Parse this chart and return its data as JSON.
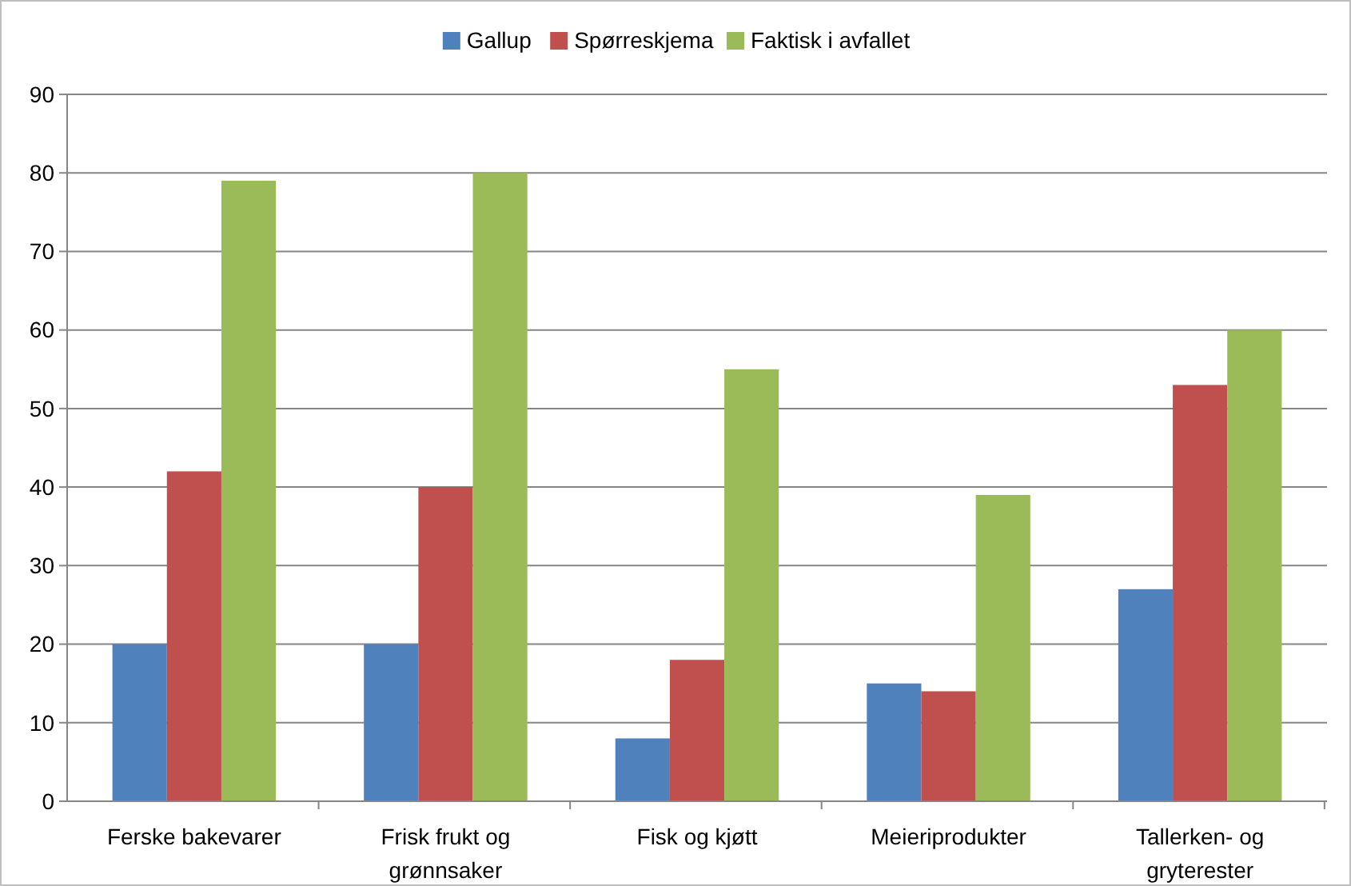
{
  "chart_data": {
    "type": "bar",
    "categories": [
      "Ferske bakevarer",
      "Frisk frukt og grønnsaker",
      "Fisk og kjøtt",
      "Meieriprodukter",
      "Tallerken- og gryterester"
    ],
    "series": [
      {
        "name": "Gallup",
        "color": "#4f81bd",
        "values": [
          20,
          20,
          8,
          15,
          27
        ]
      },
      {
        "name": "Spørreskjema",
        "color": "#c0504d",
        "values": [
          42,
          40,
          18,
          14,
          53
        ]
      },
      {
        "name": "Faktisk i avfallet",
        "color": "#9bbb59",
        "values": [
          79,
          80,
          55,
          39,
          60
        ]
      }
    ],
    "ylim": [
      0,
      90
    ],
    "yticks": [
      0,
      10,
      20,
      30,
      40,
      50,
      60,
      70,
      80,
      90
    ],
    "grid": "y",
    "legend": "top"
  }
}
